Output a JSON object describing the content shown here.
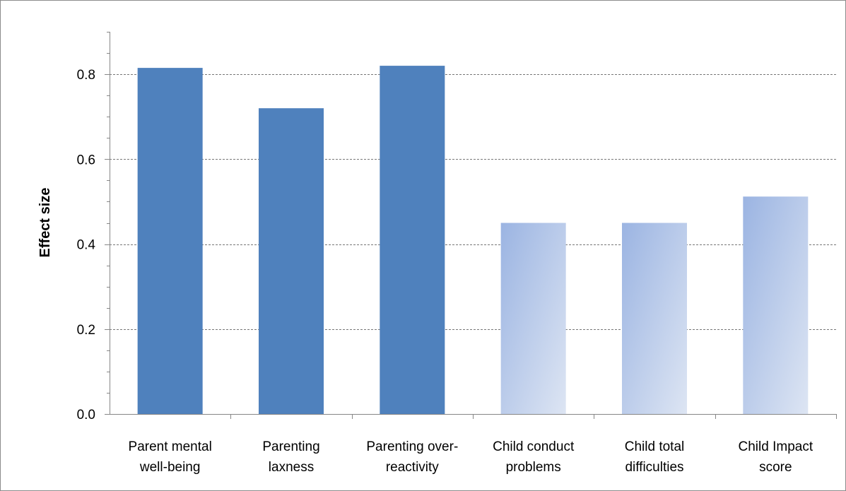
{
  "chart_data": {
    "type": "bar",
    "title": "",
    "xlabel": "",
    "ylabel": "Effect size",
    "ylim": [
      0,
      0.9
    ],
    "yticks": [
      "0.0",
      "0.2",
      "0.4",
      "0.6",
      "0.8"
    ],
    "ytick_values": [
      0,
      0.2,
      0.4,
      0.6,
      0.8
    ],
    "grid": "horizontal dashed at major ticks",
    "legend": "none",
    "categories": [
      [
        "Parent mental",
        "well-being"
      ],
      [
        "Parenting",
        "laxness"
      ],
      [
        "Parenting over-",
        "reactivity"
      ],
      [
        "Child conduct",
        "problems"
      ],
      [
        "Child total",
        "difficulties"
      ],
      [
        "Child Impact",
        "score"
      ]
    ],
    "values": [
      0.815,
      0.72,
      0.82,
      0.45,
      0.45,
      0.512
    ],
    "bar_styles": [
      "solid",
      "solid",
      "solid",
      "gradient",
      "gradient",
      "gradient"
    ],
    "colors": {
      "solid": "#4f81bd",
      "gradient_start": "#9bb4e2",
      "gradient_end": "#dde5f3",
      "grid": "#777777",
      "axis": "#868686"
    }
  }
}
